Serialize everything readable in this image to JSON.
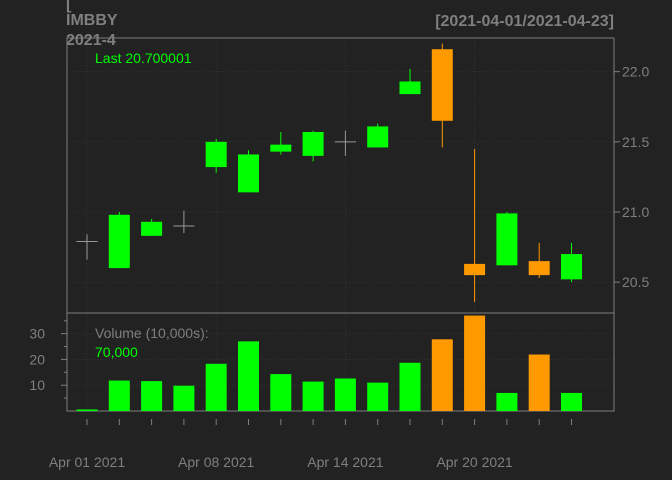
{
  "chart_data": {
    "type": "candlestick",
    "title_lines": [
      "[",
      "IMBBY",
      "2021-4"
    ],
    "date_range": "[2021-04-01/2021-04-23]",
    "last_label": "Last 20.700001",
    "volume_label": "Volume (10,000s):",
    "volume_last": "70,000",
    "dates": [
      "2021-04-01",
      "2021-04-05",
      "2021-04-06",
      "2021-04-07",
      "2021-04-08",
      "2021-04-09",
      "2021-04-12",
      "2021-04-13",
      "2021-04-14",
      "2021-04-15",
      "2021-04-16",
      "2021-04-19",
      "2021-04-20",
      "2021-04-21",
      "2021-04-22",
      "2021-04-23"
    ],
    "open": [
      20.79,
      20.6,
      20.83,
      20.9,
      21.32,
      21.14,
      21.43,
      21.4,
      21.5,
      21.46,
      21.84,
      22.16,
      20.63,
      20.62,
      20.65,
      20.52
    ],
    "high": [
      20.84,
      21.0,
      20.95,
      21.01,
      21.52,
      21.44,
      21.57,
      21.58,
      21.58,
      21.63,
      22.02,
      22.2,
      21.45,
      21.0,
      20.78,
      20.78
    ],
    "low": [
      20.66,
      20.6,
      20.83,
      20.85,
      21.28,
      21.14,
      21.41,
      21.36,
      21.4,
      21.46,
      21.84,
      21.46,
      20.36,
      20.62,
      20.53,
      20.5
    ],
    "close": [
      20.79,
      20.98,
      20.93,
      20.9,
      21.5,
      21.41,
      21.48,
      21.57,
      21.5,
      21.61,
      21.93,
      21.65,
      20.55,
      20.99,
      20.55,
      20.7
    ],
    "volume": [
      0.6,
      11.8,
      11.6,
      9.8,
      18.3,
      27.0,
      14.3,
      11.4,
      12.6,
      11.0,
      18.7,
      27.8,
      37.0,
      7.0,
      21.9,
      7.0
    ],
    "price_ticks": [
      20.5,
      21.0,
      21.5,
      22.0
    ],
    "price_tick_labels": [
      "20.5",
      "21.0",
      "21.5",
      "22.0"
    ],
    "ylim_price": [
      20.28,
      22.24
    ],
    "volume_ticks": [
      10,
      20,
      30
    ],
    "volume_tick_labels": [
      "10",
      "20",
      "30"
    ],
    "ylim_volume": [
      0,
      38
    ],
    "x_labels": [
      {
        "index": 0,
        "text": "Apr 01 2021"
      },
      {
        "index": 4,
        "text": "Apr 08 2021"
      },
      {
        "index": 8,
        "text": "Apr 14 2021"
      },
      {
        "index": 12,
        "text": "Apr 20 2021"
      }
    ],
    "grid": true,
    "colors": {
      "background": "#222222",
      "up": "#00ff00",
      "down": "#ff9900",
      "doji": "#999999",
      "axis": "#7f7f7f",
      "grid": "#333333",
      "last_label": "#00ff00",
      "volume_label": "#7f7f7f",
      "volume_last": "#00ff00"
    }
  }
}
